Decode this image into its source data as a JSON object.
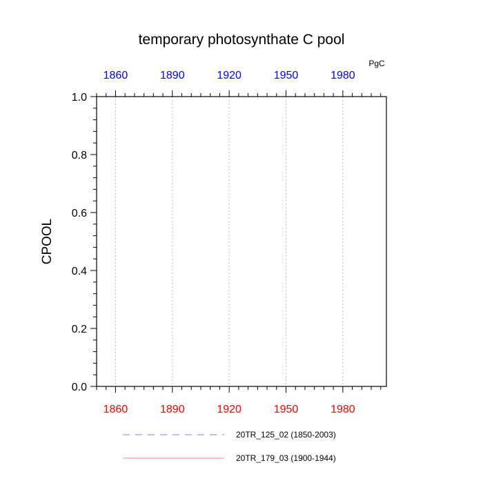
{
  "chart_data": {
    "type": "line",
    "title": "temporary photosynthate C pool",
    "units_label": "PgC",
    "ylabel": "CPOOL",
    "xlabel": "",
    "xlim": [
      1850,
      2003
    ],
    "ylim": [
      0.0,
      1.0
    ],
    "y_ticks": [
      "0.0",
      "0.2",
      "0.4",
      "0.6",
      "0.8",
      "1.0"
    ],
    "y_tick_values": [
      0.0,
      0.2,
      0.4,
      0.6,
      0.8,
      1.0
    ],
    "bottom_x_ticks": [
      "1860",
      "1890",
      "1920",
      "1950",
      "1980"
    ],
    "top_x_ticks": [
      "1860",
      "1890",
      "1920",
      "1950",
      "1980"
    ],
    "x_tick_values": [
      1860,
      1890,
      1920,
      1950,
      1980
    ],
    "vertical_grid": true,
    "legend_position": "bottom",
    "colors": {
      "bottom_axis": "#ff0000",
      "top_axis": "#0000ff",
      "grid": "#aaaaaa"
    },
    "series": [
      {
        "name": "20TR_125_02 (1850-2003)",
        "color": "#8080ff",
        "dash": true,
        "x": [
          1850,
          2003
        ],
        "y": [
          0.0,
          0.0
        ]
      },
      {
        "name": "20TR_179_03 (1900-1944)",
        "color": "#ff8080",
        "dash": false,
        "x": [
          1900,
          1944
        ],
        "y": [
          0.0,
          0.0
        ]
      }
    ]
  }
}
